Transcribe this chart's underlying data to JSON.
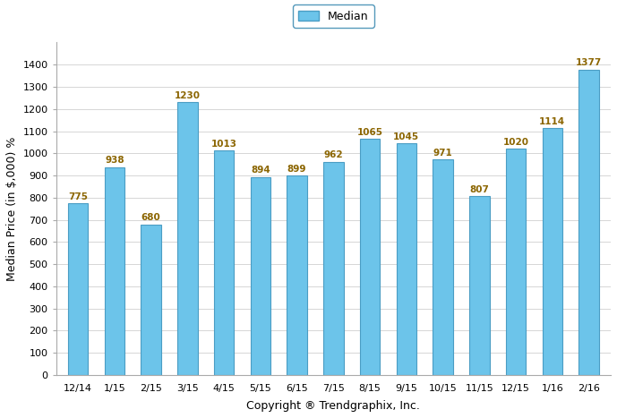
{
  "categories": [
    "12/14",
    "1/15",
    "2/15",
    "3/15",
    "4/15",
    "5/15",
    "6/15",
    "7/15",
    "8/15",
    "9/15",
    "10/15",
    "11/15",
    "12/15",
    "1/16",
    "2/16"
  ],
  "values": [
    775,
    938,
    680,
    1230,
    1013,
    894,
    899,
    962,
    1065,
    1045,
    971,
    807,
    1020,
    1114,
    1377
  ],
  "bar_color": "#6CC4EA",
  "bar_edge_color": "#4A9DC4",
  "ylabel": "Median Price (in $,000) %",
  "xlabel": "Copyright ® Trendgraphix, Inc.",
  "ylim": [
    0,
    1500
  ],
  "yticks": [
    0,
    100,
    200,
    300,
    400,
    500,
    600,
    700,
    800,
    900,
    1000,
    1100,
    1200,
    1300,
    1400
  ],
  "legend_label": "Median",
  "legend_box_color": "#6CC4EA",
  "legend_edge_color": "#4A9DC4",
  "annotation_color": "#8B6500",
  "annotation_fontsize": 7.5,
  "annotation_fontweight": "bold",
  "ylabel_fontsize": 9,
  "xlabel_fontsize": 9,
  "tick_fontsize": 8,
  "legend_fontsize": 9,
  "background_color": "#ffffff",
  "grid_color": "#d0d0d0",
  "bar_width": 0.55,
  "spine_color": "#aaaaaa"
}
